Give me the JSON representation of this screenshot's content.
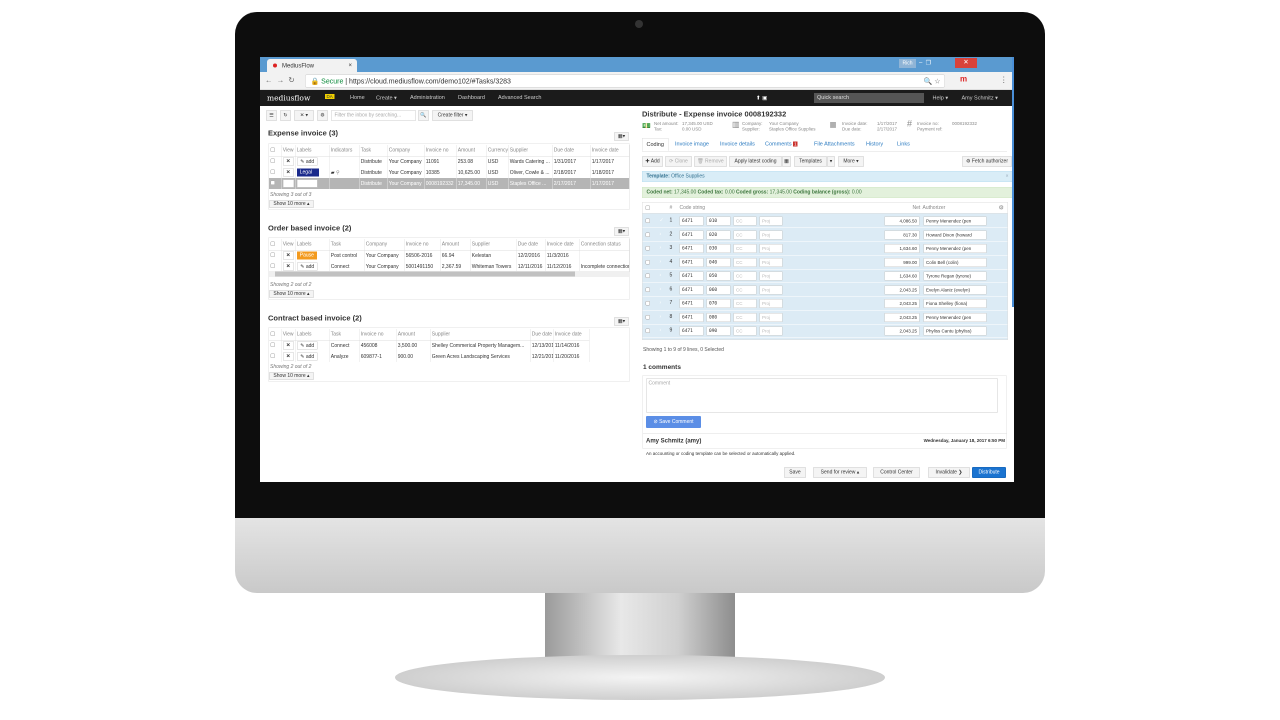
{
  "browser": {
    "tab_title": "MediusFlow",
    "secure": "Secure",
    "url": "https://cloud.mediusflow.com/demo102/#Tasks/3283",
    "profile": "Rich"
  },
  "nav": {
    "logo": "mediusflow",
    "badge": "DA",
    "items": [
      "Home",
      "Create ▾",
      "Administration",
      "Dashboard",
      "Advanced Search"
    ],
    "quick_search": "Quick search",
    "help": "Help ▾",
    "user": "Amy Schmitz ▾"
  },
  "toolbar": {
    "filter_placeholder": "Filter the inbox by searching...",
    "create_filter": "Create filter ▾"
  },
  "expense": {
    "title": "Expense invoice (3)",
    "headers": [
      "",
      "View",
      "Labels",
      "Indicators",
      "Task",
      "Company",
      "Invoice no",
      "Amount",
      "Currency",
      "Supplier",
      "Due date",
      "Invoice date"
    ],
    "rows": [
      {
        "label": "add",
        "label_type": "add",
        "indicators": "",
        "task": "Distribute",
        "company": "Your Company",
        "invoice_no": "11091",
        "amount": "253.08",
        "currency": "USD",
        "supplier": "Wards Catering ...",
        "due": "1/31/2017",
        "date": "1/17/2017",
        "selected": false
      },
      {
        "label": "Legal",
        "label_type": "legal",
        "indicators": "comment,attachment",
        "task": "Distribute",
        "company": "Your Company",
        "invoice_no": "10385",
        "amount": "10,625.00",
        "currency": "USD",
        "supplier": "Oliver, Cowle & ...",
        "due": "2/18/2017",
        "date": "1/18/2017",
        "selected": false
      },
      {
        "label": "add",
        "label_type": "add",
        "indicators": "",
        "task": "Distribute",
        "company": "Your Company",
        "invoice_no": "0008192332",
        "amount": "17,345.00",
        "currency": "USD",
        "supplier": "Staples Office ...",
        "due": "2/17/2017",
        "date": "1/17/2017",
        "selected": true
      }
    ],
    "showing": "Showing 3 out of 3",
    "show_more": "Show 10 more"
  },
  "order": {
    "title": "Order based invoice (2)",
    "headers": [
      "",
      "View",
      "Labels",
      "Task",
      "Company",
      "Invoice no",
      "Amount",
      "Supplier",
      "Due date",
      "Invoice date",
      "Connection status"
    ],
    "rows": [
      {
        "label": "Pause",
        "label_type": "pause",
        "task": "Post control",
        "company": "Your Company",
        "invoice_no": "56506-2016",
        "amount": "66.94",
        "supplier": "Kelestan",
        "due": "12/2/2016",
        "date": "11/3/2016",
        "status": ""
      },
      {
        "label": "add",
        "label_type": "add",
        "task": "Connect",
        "company": "Your Company",
        "invoice_no": "5001491150",
        "amount": "2,367.59",
        "supplier": "Whiteman Towers",
        "due": "12/11/2016",
        "date": "11/12/2016",
        "status": "Incomplete connection"
      }
    ],
    "showing": "Showing 2 out of 2",
    "show_more": "Show 10 more"
  },
  "contract": {
    "title": "Contract based invoice (2)",
    "headers": [
      "",
      "View",
      "Labels",
      "Task",
      "Invoice no",
      "Amount",
      "Supplier",
      "Due date",
      "Invoice date"
    ],
    "rows": [
      {
        "label": "add",
        "task": "Connect",
        "invoice_no": "456008",
        "amount": "3,500.00",
        "supplier": "Shelley Commerical Property Managem...",
        "due": "12/13/2016",
        "date": "11/14/2016"
      },
      {
        "label": "add",
        "task": "Analyze",
        "invoice_no": "609877-1",
        "amount": "900.00",
        "supplier": "Green Acres Landscaping Services",
        "due": "12/21/2016",
        "date": "11/20/2016"
      }
    ],
    "showing": "Showing 2 out of 2",
    "show_more": "Show 10 more"
  },
  "detail": {
    "title": "Distribute - Expense invoice 0008192332",
    "info": {
      "net_label": "Net amount:",
      "net": "17,345.00 USD",
      "tax_label": "Tax:",
      "tax": "0.00 USD",
      "company_label": "Company:",
      "company": "Your Company",
      "supplier_label": "Supplier:",
      "supplier": "Staples Office Supplies",
      "inv_date_label": "Invoice date:",
      "inv_date": "1/17/2017",
      "due_label": "Due date:",
      "due": "2/17/2017",
      "inv_no_label": "Invoice no:",
      "inv_no": "0008192332",
      "pay_ref_label": "Payment ref:"
    },
    "tabs": [
      "Coding",
      "Invoice image",
      "Invoice details",
      "Comments",
      "File Attachments",
      "History",
      "Links"
    ],
    "comments_badge": "1",
    "buttons": {
      "add": "Add",
      "clone": "Clone",
      "remove": "Remove",
      "apply": "Apply latest coding",
      "templates": "Templates",
      "more": "More ▾",
      "fetch": "Fetch authorizer"
    },
    "template_label": "Template:",
    "template": "Office Supplies",
    "coded": {
      "net_label": "Coded net:",
      "net": "17,345.00",
      "tax_label": "Coded tax:",
      "tax": "0.00",
      "gross_label": "Coded gross:",
      "gross": "17,345.00",
      "balance_label": "Coding balance (gross):",
      "balance": "0.00"
    },
    "coding_headers": [
      "#",
      "Code string",
      "Net",
      "Authorizer"
    ],
    "cc_placeholder": "CC",
    "proj_placeholder": "Proj",
    "lines": [
      {
        "n": "1",
        "a": "6471",
        "b": "010",
        "net": "4,086.50",
        "auth": "Penny Menendez (pen"
      },
      {
        "n": "2",
        "a": "6471",
        "b": "020",
        "net": "817.30",
        "auth": "Howard Dixon (howard"
      },
      {
        "n": "3",
        "a": "6471",
        "b": "030",
        "net": "1,634.60",
        "auth": "Penny Menendez (pen"
      },
      {
        "n": "4",
        "a": "6471",
        "b": "040",
        "net": "999.00",
        "auth": "Colin Bell (colin)"
      },
      {
        "n": "5",
        "a": "6471",
        "b": "050",
        "net": "1,634.60",
        "auth": "Tyrone Regan (tyrone)"
      },
      {
        "n": "6",
        "a": "6471",
        "b": "060",
        "net": "2,043.25",
        "auth": "Evelyn Alaniz (evelyn)"
      },
      {
        "n": "7",
        "a": "6471",
        "b": "070",
        "net": "2,043.25",
        "auth": "Fiona Shelley (fiona)"
      },
      {
        "n": "8",
        "a": "6471",
        "b": "080",
        "net": "2,043.25",
        "auth": "Penny Menendez (pen"
      },
      {
        "n": "9",
        "a": "6471",
        "b": "090",
        "net": "2,043.25",
        "auth": "Phyliss Cantu (phyliss)"
      }
    ],
    "lines_showing": "Showing 1 to 9 of 9 lines,  0 Selected",
    "comments_title": "1 comments",
    "comment_placeholder": "Comment",
    "save_comment": "Save Comment",
    "comment": {
      "author": "Amy Schmitz (amy)",
      "date": "Wednesday, January 18, 2017 6:50 PM",
      "text": "An accounting or coding template can be selected or automatically applied."
    },
    "footer": {
      "save": "Save",
      "send": "Send for review ▴",
      "control": "Control Center",
      "invalidate": "Invalidate",
      "distribute": "Distribute"
    }
  },
  "colors": {
    "nav_bg": "#1b1b1b",
    "tab_strip": "#5a9ad0",
    "link": "#2a7ac0",
    "primary": "#1a73d0",
    "legal": "#1a2a8c",
    "pause": "#f39a1e",
    "coding_bg": "#dcebf5",
    "coded_bg": "#e3f1dc",
    "template_bg": "#d9edf7"
  }
}
